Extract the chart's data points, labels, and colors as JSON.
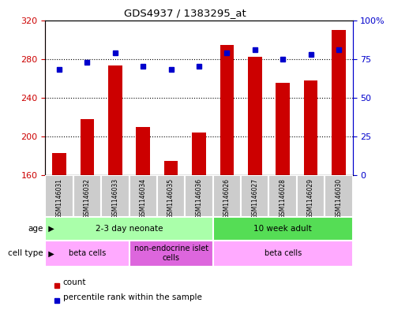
{
  "title": "GDS4937 / 1383295_at",
  "samples": [
    "GSM1146031",
    "GSM1146032",
    "GSM1146033",
    "GSM1146034",
    "GSM1146035",
    "GSM1146036",
    "GSM1146026",
    "GSM1146027",
    "GSM1146028",
    "GSM1146029",
    "GSM1146030"
  ],
  "counts": [
    183,
    218,
    273,
    210,
    175,
    204,
    294,
    282,
    255,
    258,
    310
  ],
  "percentiles": [
    68,
    73,
    79,
    70,
    68,
    70,
    79,
    81,
    75,
    78,
    81
  ],
  "ylim_left": [
    160,
    320
  ],
  "ylim_right": [
    0,
    100
  ],
  "yticks_left": [
    160,
    200,
    240,
    280,
    320
  ],
  "yticks_right": [
    0,
    25,
    50,
    75,
    100
  ],
  "yticklabels_right": [
    "0",
    "25",
    "50",
    "75",
    "100%"
  ],
  "bar_color": "#cc0000",
  "dot_color": "#0000cc",
  "age_groups": [
    {
      "label": "2-3 day neonate",
      "start": 0,
      "end": 6,
      "color": "#aaffaa"
    },
    {
      "label": "10 week adult",
      "start": 6,
      "end": 11,
      "color": "#55dd55"
    }
  ],
  "cell_type_groups": [
    {
      "label": "beta cells",
      "start": 0,
      "end": 3,
      "color": "#ffaaff"
    },
    {
      "label": "non-endocrine islet\ncells",
      "start": 3,
      "end": 6,
      "color": "#dd66dd"
    },
    {
      "label": "beta cells",
      "start": 6,
      "end": 11,
      "color": "#ffaaff"
    }
  ],
  "legend_items": [
    {
      "color": "#cc0000",
      "label": "count"
    },
    {
      "color": "#0000cc",
      "label": "percentile rank within the sample"
    }
  ],
  "sample_bg_color": "#cccccc",
  "grid_color": "#000000",
  "dotted_lines": [
    200,
    240,
    280
  ]
}
